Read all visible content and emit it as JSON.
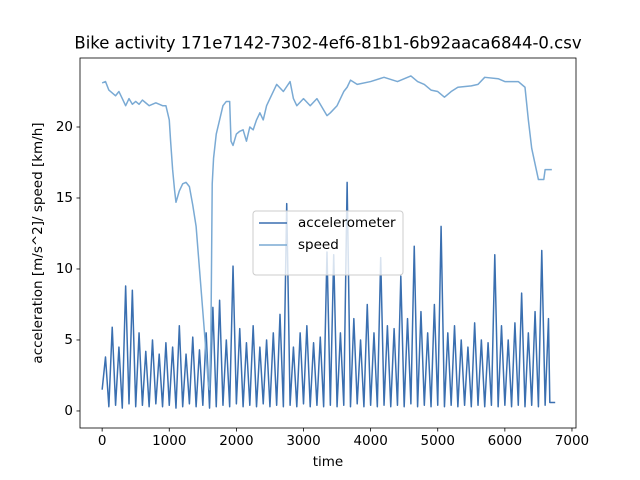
{
  "chart_data": {
    "type": "line",
    "title": "Bike activity 171e7142-7302-4ef6-81b1-6b92aaca6844-0.csv",
    "x_label": "time",
    "y_label": "acceleration [m/s^2]/ speed [km/h]",
    "xlim": [
      -330,
      7060
    ],
    "ylim": [
      -1.2,
      24.86
    ],
    "xticks": [
      0,
      1000,
      2000,
      3000,
      4000,
      5000,
      6000,
      7000
    ],
    "yticks": [
      0,
      5,
      10,
      15,
      20
    ],
    "legend": "center",
    "series": [
      {
        "name": "accelerometer",
        "color": "#3a6fb0",
        "x": [
          0,
          50,
          100,
          150,
          200,
          250,
          300,
          350,
          400,
          450,
          500,
          550,
          600,
          650,
          700,
          750,
          800,
          850,
          900,
          950,
          1000,
          1050,
          1100,
          1150,
          1200,
          1250,
          1300,
          1350,
          1400,
          1450,
          1500,
          1550,
          1600,
          1650,
          1700,
          1750,
          1800,
          1850,
          1900,
          1950,
          2000,
          2050,
          2100,
          2150,
          2200,
          2250,
          2300,
          2350,
          2400,
          2450,
          2500,
          2550,
          2600,
          2650,
          2700,
          2750,
          2800,
          2850,
          2900,
          2950,
          3000,
          3050,
          3100,
          3150,
          3200,
          3250,
          3300,
          3350,
          3400,
          3450,
          3500,
          3550,
          3600,
          3650,
          3700,
          3750,
          3800,
          3850,
          3900,
          3950,
          4000,
          4050,
          4100,
          4150,
          4200,
          4250,
          4300,
          4350,
          4400,
          4450,
          4500,
          4550,
          4600,
          4650,
          4700,
          4750,
          4800,
          4850,
          4900,
          4950,
          5000,
          5050,
          5100,
          5150,
          5200,
          5250,
          5300,
          5350,
          5400,
          5450,
          5500,
          5550,
          5600,
          5650,
          5700,
          5750,
          5800,
          5850,
          5900,
          5950,
          6000,
          6050,
          6100,
          6150,
          6200,
          6250,
          6300,
          6350,
          6400,
          6450,
          6500,
          6550,
          6600,
          6650,
          6670,
          6750
        ],
        "values": [
          1.5,
          3.8,
          0.3,
          5.9,
          0.4,
          4.5,
          0.2,
          8.8,
          0.5,
          8.5,
          0.3,
          5.5,
          0.4,
          4.2,
          0.3,
          5.0,
          0.5,
          4.0,
          0.3,
          4.8,
          0.4,
          4.5,
          0.2,
          6.0,
          0.3,
          4.0,
          0.5,
          5.2,
          0.3,
          4.3,
          0.4,
          5.5,
          0.2,
          7.3,
          0.3,
          7.8,
          0.4,
          5.0,
          0.3,
          10.2,
          0.5,
          5.8,
          0.3,
          4.8,
          0.4,
          6.0,
          0.3,
          4.5,
          0.5,
          5.0,
          0.3,
          5.5,
          0.4,
          6.8,
          0.3,
          14.6,
          0.4,
          4.5,
          0.3,
          5.5,
          0.5,
          6.0,
          0.3,
          4.8,
          0.4,
          5.2,
          0.3,
          11.2,
          0.4,
          11.0,
          0.3,
          5.5,
          0.4,
          16.1,
          0.3,
          6.5,
          0.5,
          5.0,
          0.3,
          7.5,
          0.4,
          5.5,
          0.3,
          10.8,
          0.4,
          6.0,
          0.3,
          5.8,
          0.4,
          9.5,
          0.3,
          6.5,
          0.5,
          11.6,
          0.3,
          7.0,
          0.4,
          5.5,
          0.3,
          7.5,
          0.4,
          13.0,
          0.3,
          5.5,
          0.4,
          6.0,
          0.3,
          5.0,
          0.4,
          4.5,
          0.3,
          6.2,
          0.4,
          5.0,
          0.3,
          4.8,
          0.4,
          11.0,
          0.3,
          6.0,
          0.4,
          5.0,
          0.3,
          6.2,
          0.4,
          8.3,
          0.3,
          5.5,
          0.4,
          7.0,
          0.3,
          11.3,
          0.4,
          6.5,
          0.6,
          0.6
        ]
      },
      {
        "name": "speed",
        "color": "#7aaad4",
        "x": [
          0,
          50,
          100,
          150,
          200,
          250,
          300,
          350,
          400,
          450,
          500,
          550,
          600,
          650,
          700,
          800,
          900,
          950,
          1000,
          1020,
          1050,
          1080,
          1100,
          1150,
          1200,
          1250,
          1300,
          1350,
          1400,
          1450,
          1500,
          1550,
          1580,
          1600,
          1620,
          1640,
          1660,
          1700,
          1750,
          1800,
          1850,
          1900,
          1920,
          1950,
          2000,
          2050,
          2100,
          2150,
          2200,
          2250,
          2300,
          2350,
          2400,
          2450,
          2500,
          2600,
          2700,
          2800,
          2850,
          2900,
          3000,
          3100,
          3200,
          3300,
          3350,
          3400,
          3500,
          3600,
          3650,
          3700,
          3800,
          4000,
          4200,
          4400,
          4600,
          4700,
          4800,
          4900,
          5000,
          5100,
          5200,
          5300,
          5500,
          5600,
          5700,
          5900,
          6000,
          6200,
          6300,
          6350,
          6400,
          6500,
          6580,
          6600,
          6700
        ],
        "values": [
          23.1,
          23.2,
          22.6,
          22.4,
          22.2,
          22.5,
          22.0,
          21.5,
          22.0,
          21.6,
          21.8,
          21.6,
          21.9,
          21.7,
          21.5,
          21.7,
          21.5,
          21.5,
          20.5,
          19,
          17,
          15.5,
          14.7,
          15.5,
          16,
          16.1,
          15.8,
          14.5,
          13,
          10,
          7,
          4,
          2,
          1.5,
          5,
          16,
          17.8,
          19.5,
          20.5,
          21.5,
          21.8,
          21.8,
          19,
          18.7,
          19.5,
          19.7,
          19.8,
          19,
          20,
          19.8,
          20.5,
          21,
          20.5,
          21.5,
          22,
          23,
          22.5,
          23.2,
          22,
          21.5,
          22,
          21.5,
          22,
          21.2,
          20.8,
          21,
          21.5,
          22.5,
          22.8,
          23.3,
          23.0,
          23.2,
          23.5,
          23.2,
          23.6,
          23.2,
          23.0,
          22.6,
          22.5,
          22.1,
          22.5,
          22.8,
          22.9,
          23.0,
          23.5,
          23.4,
          23.2,
          23.2,
          22.8,
          20.5,
          18.5,
          16.3,
          16.3,
          17,
          17
        ]
      }
    ]
  }
}
